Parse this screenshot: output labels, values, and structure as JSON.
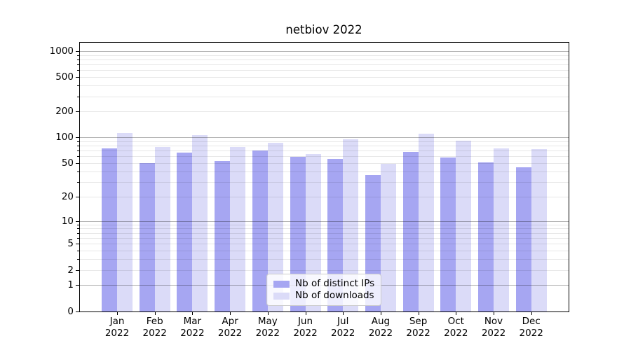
{
  "chart_data": {
    "type": "bar",
    "title": "netbiov 2022",
    "x_axis": {
      "categories": [
        "Jan",
        "Feb",
        "Mar",
        "Apr",
        "May",
        "Jun",
        "Jul",
        "Aug",
        "Sep",
        "Oct",
        "Nov",
        "Dec"
      ],
      "year": "2022"
    },
    "y_axis": {
      "scale": "log1p",
      "tick_labels": [
        "0",
        "1",
        "2",
        "5",
        "10",
        "20",
        "50",
        "100",
        "200",
        "500",
        "1000"
      ],
      "tick_values": [
        0,
        1,
        2,
        5,
        10,
        20,
        50,
        100,
        200,
        500,
        1000
      ],
      "range_max": 1270
    },
    "grid": {
      "on": true,
      "major_lines": [
        1,
        10,
        100,
        1000
      ],
      "minor_lines": [
        2,
        3,
        4,
        5,
        6,
        7,
        8,
        9,
        20,
        30,
        40,
        50,
        60,
        70,
        80,
        90,
        200,
        300,
        400,
        500,
        600,
        700,
        800,
        900
      ],
      "minor_axis_ticks": [
        3,
        4,
        6,
        7,
        8,
        9,
        30,
        40,
        60,
        70,
        80,
        90,
        300,
        400,
        600,
        700,
        800,
        900
      ]
    },
    "series": [
      {
        "name": "Nb of distinct IPs",
        "color": "#a6a6f2",
        "values": [
          74,
          50,
          66,
          53,
          70,
          59,
          56,
          36,
          68,
          58,
          51,
          45
        ]
      },
      {
        "name": "Nb of downloads",
        "color": "#dbdbf8",
        "values": [
          112,
          77,
          106,
          78,
          87,
          64,
          96,
          49,
          111,
          91,
          75,
          73
        ]
      }
    ],
    "legend": {
      "position": "lower-center"
    }
  }
}
